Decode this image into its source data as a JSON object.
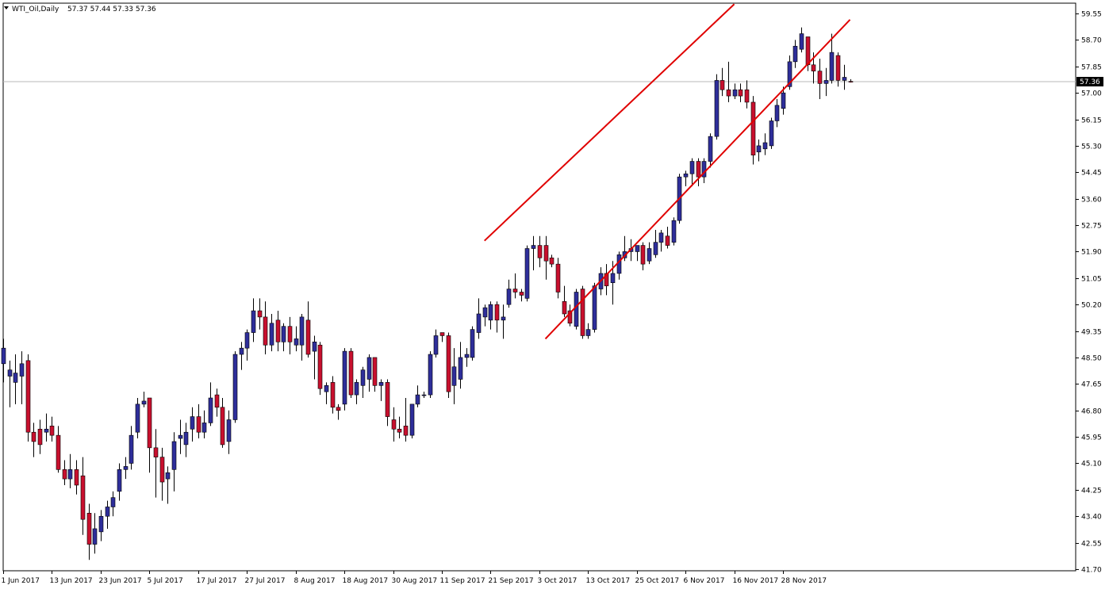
{
  "header": {
    "symbol_timeframe": "WTI_Oil,Daily",
    "ohlc": "57.37 57.44 57.33 57.36"
  },
  "current_price_label": "57.36",
  "colors": {
    "bull_body": "#2E2E9A",
    "bear_body": "#C8102E",
    "wick": "#000000",
    "channel_line": "#E00000",
    "current_price_line": "#B8B8B8",
    "price_tag_bg": "#000000",
    "price_tag_text": "#FFFFFF",
    "background": "#FFFFFF",
    "frame": "#000000"
  },
  "chart_data": {
    "type": "candlestick",
    "instrument": "WTI_Oil",
    "timeframe": "Daily",
    "y_ticks": [
      59.55,
      58.7,
      57.85,
      57.0,
      56.15,
      55.3,
      54.45,
      53.6,
      52.75,
      51.9,
      51.05,
      50.2,
      49.35,
      48.5,
      47.65,
      46.8,
      45.95,
      45.1,
      44.25,
      43.4,
      42.55,
      41.7
    ],
    "y_tick_labels": [
      "59.55",
      "58.70",
      "57.85",
      "57.00",
      "56.15",
      "55.30",
      "54.45",
      "53.60",
      "52.75",
      "51.90",
      "51.05",
      "50.20",
      "49.35",
      "48.50",
      "47.65",
      "46.80",
      "45.95",
      "45.10",
      "44.25",
      "43.40",
      "42.55",
      "41.70"
    ],
    "ylim": [
      41.7,
      59.9
    ],
    "x_ticks": [
      {
        "label": "1 Jun 2017",
        "index": 0
      },
      {
        "label": "13 Jun 2017",
        "index": 8
      },
      {
        "label": "23 Jun 2017",
        "index": 16
      },
      {
        "label": "5 Jul 2017",
        "index": 24
      },
      {
        "label": "17 Jul 2017",
        "index": 32
      },
      {
        "label": "27 Jul 2017",
        "index": 40
      },
      {
        "label": "8 Aug 2017",
        "index": 48
      },
      {
        "label": "18 Aug 2017",
        "index": 56
      },
      {
        "label": "30 Aug 2017",
        "index": 64
      },
      {
        "label": "11 Sep 2017",
        "index": 72
      },
      {
        "label": "21 Sep 2017",
        "index": 80
      },
      {
        "label": "3 Oct 2017",
        "index": 88
      },
      {
        "label": "13 Oct 2017",
        "index": 96
      },
      {
        "label": "25 Oct 2017",
        "index": 104
      },
      {
        "label": "6 Nov 2017",
        "index": 112
      },
      {
        "label": "16 Nov 2017",
        "index": 120
      },
      {
        "label": "28 Nov 2017",
        "index": 128
      }
    ],
    "current_price": 57.36,
    "candles": [
      {
        "o": 48.3,
        "h": 49.1,
        "l": 47.7,
        "c": 48.8
      },
      {
        "o": 47.9,
        "h": 48.4,
        "l": 46.9,
        "c": 48.1
      },
      {
        "o": 47.7,
        "h": 48.6,
        "l": 47.0,
        "c": 48.0
      },
      {
        "o": 47.9,
        "h": 48.7,
        "l": 47.0,
        "c": 48.3
      },
      {
        "o": 48.4,
        "h": 48.6,
        "l": 45.8,
        "c": 46.1
      },
      {
        "o": 46.1,
        "h": 46.4,
        "l": 45.3,
        "c": 45.8
      },
      {
        "o": 46.2,
        "h": 46.5,
        "l": 45.4,
        "c": 45.7
      },
      {
        "o": 46.1,
        "h": 46.7,
        "l": 45.8,
        "c": 46.2
      },
      {
        "o": 46.3,
        "h": 46.6,
        "l": 45.8,
        "c": 46.0
      },
      {
        "o": 46.0,
        "h": 46.3,
        "l": 44.8,
        "c": 44.9
      },
      {
        "o": 44.9,
        "h": 45.2,
        "l": 44.4,
        "c": 44.6
      },
      {
        "o": 44.6,
        "h": 45.4,
        "l": 44.3,
        "c": 44.9
      },
      {
        "o": 44.9,
        "h": 45.2,
        "l": 44.1,
        "c": 44.4
      },
      {
        "o": 44.7,
        "h": 45.3,
        "l": 42.8,
        "c": 43.3
      },
      {
        "o": 43.5,
        "h": 43.8,
        "l": 42.0,
        "c": 42.5
      },
      {
        "o": 42.5,
        "h": 43.5,
        "l": 42.2,
        "c": 43.0
      },
      {
        "o": 42.9,
        "h": 43.6,
        "l": 42.6,
        "c": 43.4
      },
      {
        "o": 43.4,
        "h": 43.9,
        "l": 43.0,
        "c": 43.7
      },
      {
        "o": 43.7,
        "h": 44.2,
        "l": 43.4,
        "c": 44.0
      },
      {
        "o": 44.2,
        "h": 45.1,
        "l": 43.9,
        "c": 44.9
      },
      {
        "o": 44.9,
        "h": 45.3,
        "l": 44.6,
        "c": 45.0
      },
      {
        "o": 45.1,
        "h": 46.3,
        "l": 44.9,
        "c": 46.0
      },
      {
        "o": 46.1,
        "h": 47.2,
        "l": 45.9,
        "c": 47.0
      },
      {
        "o": 47.0,
        "h": 47.4,
        "l": 46.9,
        "c": 47.1
      },
      {
        "o": 47.2,
        "h": 47.2,
        "l": 44.8,
        "c": 45.6
      },
      {
        "o": 45.6,
        "h": 46.2,
        "l": 44.0,
        "c": 45.3
      },
      {
        "o": 45.3,
        "h": 45.6,
        "l": 43.9,
        "c": 44.5
      },
      {
        "o": 44.6,
        "h": 45.0,
        "l": 43.8,
        "c": 44.8
      },
      {
        "o": 44.9,
        "h": 46.1,
        "l": 44.2,
        "c": 45.8
      },
      {
        "o": 45.9,
        "h": 46.5,
        "l": 45.4,
        "c": 46.0
      },
      {
        "o": 45.7,
        "h": 46.4,
        "l": 45.3,
        "c": 46.1
      },
      {
        "o": 46.2,
        "h": 46.9,
        "l": 45.8,
        "c": 46.6
      },
      {
        "o": 46.6,
        "h": 47.0,
        "l": 45.9,
        "c": 46.1
      },
      {
        "o": 46.1,
        "h": 46.8,
        "l": 45.9,
        "c": 46.4
      },
      {
        "o": 46.4,
        "h": 47.7,
        "l": 46.3,
        "c": 47.2
      },
      {
        "o": 47.3,
        "h": 47.5,
        "l": 46.6,
        "c": 46.9
      },
      {
        "o": 46.9,
        "h": 47.2,
        "l": 45.6,
        "c": 45.7
      },
      {
        "o": 45.8,
        "h": 46.8,
        "l": 45.4,
        "c": 46.5
      },
      {
        "o": 46.5,
        "h": 48.7,
        "l": 46.4,
        "c": 48.6
      },
      {
        "o": 48.6,
        "h": 49.0,
        "l": 48.1,
        "c": 48.8
      },
      {
        "o": 48.8,
        "h": 49.4,
        "l": 48.4,
        "c": 49.3
      },
      {
        "o": 49.3,
        "h": 50.4,
        "l": 49.0,
        "c": 50.0
      },
      {
        "o": 50.0,
        "h": 50.4,
        "l": 49.4,
        "c": 49.8
      },
      {
        "o": 49.8,
        "h": 50.3,
        "l": 48.6,
        "c": 48.9
      },
      {
        "o": 48.9,
        "h": 49.9,
        "l": 48.7,
        "c": 49.6
      },
      {
        "o": 49.7,
        "h": 50.0,
        "l": 48.7,
        "c": 49.0
      },
      {
        "o": 49.0,
        "h": 49.6,
        "l": 48.7,
        "c": 49.5
      },
      {
        "o": 49.5,
        "h": 49.8,
        "l": 48.6,
        "c": 49.0
      },
      {
        "o": 48.9,
        "h": 49.5,
        "l": 48.7,
        "c": 49.1
      },
      {
        "o": 48.9,
        "h": 49.9,
        "l": 48.4,
        "c": 49.8
      },
      {
        "o": 49.7,
        "h": 50.3,
        "l": 48.5,
        "c": 48.6
      },
      {
        "o": 48.7,
        "h": 49.2,
        "l": 47.8,
        "c": 49.0
      },
      {
        "o": 48.9,
        "h": 49.0,
        "l": 47.3,
        "c": 47.5
      },
      {
        "o": 47.4,
        "h": 47.7,
        "l": 47.0,
        "c": 47.6
      },
      {
        "o": 47.7,
        "h": 47.9,
        "l": 46.7,
        "c": 46.9
      },
      {
        "o": 46.9,
        "h": 47.0,
        "l": 46.5,
        "c": 46.8
      },
      {
        "o": 47.0,
        "h": 48.8,
        "l": 46.8,
        "c": 48.7
      },
      {
        "o": 48.7,
        "h": 48.8,
        "l": 47.2,
        "c": 47.3
      },
      {
        "o": 47.3,
        "h": 47.8,
        "l": 47.0,
        "c": 47.7
      },
      {
        "o": 47.6,
        "h": 48.2,
        "l": 47.2,
        "c": 48.1
      },
      {
        "o": 47.8,
        "h": 48.6,
        "l": 47.4,
        "c": 48.5
      },
      {
        "o": 48.5,
        "h": 48.5,
        "l": 47.4,
        "c": 47.6
      },
      {
        "o": 47.6,
        "h": 47.8,
        "l": 47.1,
        "c": 47.7
      },
      {
        "o": 47.7,
        "h": 47.8,
        "l": 46.3,
        "c": 46.6
      },
      {
        "o": 46.5,
        "h": 46.9,
        "l": 45.8,
        "c": 46.2
      },
      {
        "o": 46.2,
        "h": 46.6,
        "l": 45.9,
        "c": 46.1
      },
      {
        "o": 46.3,
        "h": 47.2,
        "l": 45.8,
        "c": 46.0
      },
      {
        "o": 46.0,
        "h": 47.0,
        "l": 45.9,
        "c": 47.0
      },
      {
        "o": 47.0,
        "h": 47.6,
        "l": 46.9,
        "c": 47.3
      },
      {
        "o": 47.3,
        "h": 47.4,
        "l": 47.2,
        "c": 47.3
      },
      {
        "o": 47.3,
        "h": 48.7,
        "l": 47.2,
        "c": 48.6
      },
      {
        "o": 48.6,
        "h": 49.4,
        "l": 48.5,
        "c": 49.2
      },
      {
        "o": 49.3,
        "h": 49.3,
        "l": 49.0,
        "c": 49.2
      },
      {
        "o": 49.2,
        "h": 49.3,
        "l": 47.2,
        "c": 47.4
      },
      {
        "o": 47.6,
        "h": 48.8,
        "l": 47.0,
        "c": 48.2
      },
      {
        "o": 47.8,
        "h": 49.0,
        "l": 47.5,
        "c": 48.5
      },
      {
        "o": 48.5,
        "h": 48.8,
        "l": 48.2,
        "c": 48.6
      },
      {
        "o": 48.5,
        "h": 49.5,
        "l": 48.4,
        "c": 49.4
      },
      {
        "o": 49.3,
        "h": 50.4,
        "l": 49.1,
        "c": 49.9
      },
      {
        "o": 49.8,
        "h": 50.2,
        "l": 49.5,
        "c": 50.1
      },
      {
        "o": 49.7,
        "h": 50.3,
        "l": 49.4,
        "c": 50.2
      },
      {
        "o": 50.2,
        "h": 50.3,
        "l": 49.3,
        "c": 49.7
      },
      {
        "o": 49.7,
        "h": 50.2,
        "l": 49.1,
        "c": 49.8
      },
      {
        "o": 50.2,
        "h": 51.0,
        "l": 50.1,
        "c": 50.7
      },
      {
        "o": 50.7,
        "h": 51.2,
        "l": 50.4,
        "c": 50.6
      },
      {
        "o": 50.6,
        "h": 50.7,
        "l": 50.3,
        "c": 50.5
      },
      {
        "o": 50.4,
        "h": 52.1,
        "l": 50.3,
        "c": 52.0
      },
      {
        "o": 52.0,
        "h": 52.4,
        "l": 51.3,
        "c": 52.1
      },
      {
        "o": 52.1,
        "h": 52.4,
        "l": 51.4,
        "c": 51.7
      },
      {
        "o": 52.1,
        "h": 52.4,
        "l": 51.0,
        "c": 51.6
      },
      {
        "o": 51.7,
        "h": 51.8,
        "l": 51.4,
        "c": 51.5
      },
      {
        "o": 51.5,
        "h": 51.7,
        "l": 50.4,
        "c": 50.6
      },
      {
        "o": 50.3,
        "h": 50.8,
        "l": 49.8,
        "c": 49.9
      },
      {
        "o": 50.0,
        "h": 50.2,
        "l": 49.5,
        "c": 49.6
      },
      {
        "o": 49.5,
        "h": 50.7,
        "l": 49.4,
        "c": 50.6
      },
      {
        "o": 50.7,
        "h": 50.8,
        "l": 49.1,
        "c": 49.2
      },
      {
        "o": 49.2,
        "h": 49.6,
        "l": 49.1,
        "c": 49.4
      },
      {
        "o": 49.4,
        "h": 50.9,
        "l": 49.3,
        "c": 50.8
      },
      {
        "o": 50.7,
        "h": 51.4,
        "l": 50.5,
        "c": 51.2
      },
      {
        "o": 51.2,
        "h": 51.5,
        "l": 50.5,
        "c": 50.8
      },
      {
        "o": 50.9,
        "h": 51.6,
        "l": 50.2,
        "c": 51.2
      },
      {
        "o": 51.2,
        "h": 51.9,
        "l": 51.0,
        "c": 51.8
      },
      {
        "o": 51.7,
        "h": 52.4,
        "l": 51.6,
        "c": 51.9
      },
      {
        "o": 51.9,
        "h": 52.3,
        "l": 51.6,
        "c": 52.0
      },
      {
        "o": 51.9,
        "h": 52.1,
        "l": 51.6,
        "c": 52.1
      },
      {
        "o": 52.1,
        "h": 52.2,
        "l": 51.3,
        "c": 51.5
      },
      {
        "o": 51.6,
        "h": 52.2,
        "l": 51.5,
        "c": 52.0
      },
      {
        "o": 51.8,
        "h": 52.6,
        "l": 51.7,
        "c": 52.2
      },
      {
        "o": 52.2,
        "h": 52.6,
        "l": 51.9,
        "c": 52.5
      },
      {
        "o": 52.4,
        "h": 52.7,
        "l": 52.0,
        "c": 52.1
      },
      {
        "o": 52.2,
        "h": 53.0,
        "l": 52.1,
        "c": 52.9
      },
      {
        "o": 52.9,
        "h": 54.4,
        "l": 52.8,
        "c": 54.3
      },
      {
        "o": 54.3,
        "h": 54.5,
        "l": 54.0,
        "c": 54.4
      },
      {
        "o": 54.4,
        "h": 54.9,
        "l": 54.0,
        "c": 54.8
      },
      {
        "o": 54.8,
        "h": 54.9,
        "l": 54.0,
        "c": 54.3
      },
      {
        "o": 54.3,
        "h": 54.9,
        "l": 54.1,
        "c": 54.8
      },
      {
        "o": 54.8,
        "h": 55.7,
        "l": 54.6,
        "c": 55.6
      },
      {
        "o": 55.6,
        "h": 57.6,
        "l": 55.5,
        "c": 57.4
      },
      {
        "o": 57.4,
        "h": 57.8,
        "l": 56.9,
        "c": 57.1
      },
      {
        "o": 57.1,
        "h": 58.0,
        "l": 56.7,
        "c": 56.9
      },
      {
        "o": 56.9,
        "h": 57.3,
        "l": 56.8,
        "c": 57.1
      },
      {
        "o": 57.1,
        "h": 57.3,
        "l": 56.7,
        "c": 56.9
      },
      {
        "o": 57.1,
        "h": 57.4,
        "l": 56.5,
        "c": 56.7
      },
      {
        "o": 56.7,
        "h": 56.9,
        "l": 54.7,
        "c": 55.0
      },
      {
        "o": 55.1,
        "h": 55.5,
        "l": 54.8,
        "c": 55.3
      },
      {
        "o": 55.2,
        "h": 55.7,
        "l": 55.0,
        "c": 55.4
      },
      {
        "o": 55.3,
        "h": 56.2,
        "l": 55.2,
        "c": 56.1
      },
      {
        "o": 56.1,
        "h": 56.8,
        "l": 55.9,
        "c": 56.6
      },
      {
        "o": 56.5,
        "h": 57.2,
        "l": 56.3,
        "c": 57.0
      },
      {
        "o": 57.2,
        "h": 58.2,
        "l": 57.1,
        "c": 58.0
      },
      {
        "o": 58.0,
        "h": 58.7,
        "l": 57.8,
        "c": 58.5
      },
      {
        "o": 58.4,
        "h": 59.1,
        "l": 58.3,
        "c": 58.9
      },
      {
        "o": 58.8,
        "h": 58.8,
        "l": 57.7,
        "c": 57.9
      },
      {
        "o": 57.9,
        "h": 58.3,
        "l": 57.3,
        "c": 57.7
      },
      {
        "o": 57.7,
        "h": 58.1,
        "l": 56.8,
        "c": 57.3
      },
      {
        "o": 57.3,
        "h": 57.8,
        "l": 56.9,
        "c": 57.4
      },
      {
        "o": 57.4,
        "h": 58.9,
        "l": 57.3,
        "c": 58.3
      },
      {
        "o": 58.2,
        "h": 58.3,
        "l": 57.2,
        "c": 57.4
      },
      {
        "o": 57.4,
        "h": 57.9,
        "l": 57.1,
        "c": 57.5
      },
      {
        "o": 57.37,
        "h": 57.44,
        "l": 57.33,
        "c": 57.36
      }
    ],
    "trendlines": [
      {
        "name": "channel-upper",
        "points": [
          {
            "index": 79,
            "value": 52.25
          },
          {
            "index": 120,
            "value": 59.85
          }
        ]
      },
      {
        "name": "channel-lower",
        "points": [
          {
            "index": 89,
            "value": 49.1
          },
          {
            "index": 139,
            "value": 59.35
          }
        ]
      }
    ],
    "grid": false
  }
}
